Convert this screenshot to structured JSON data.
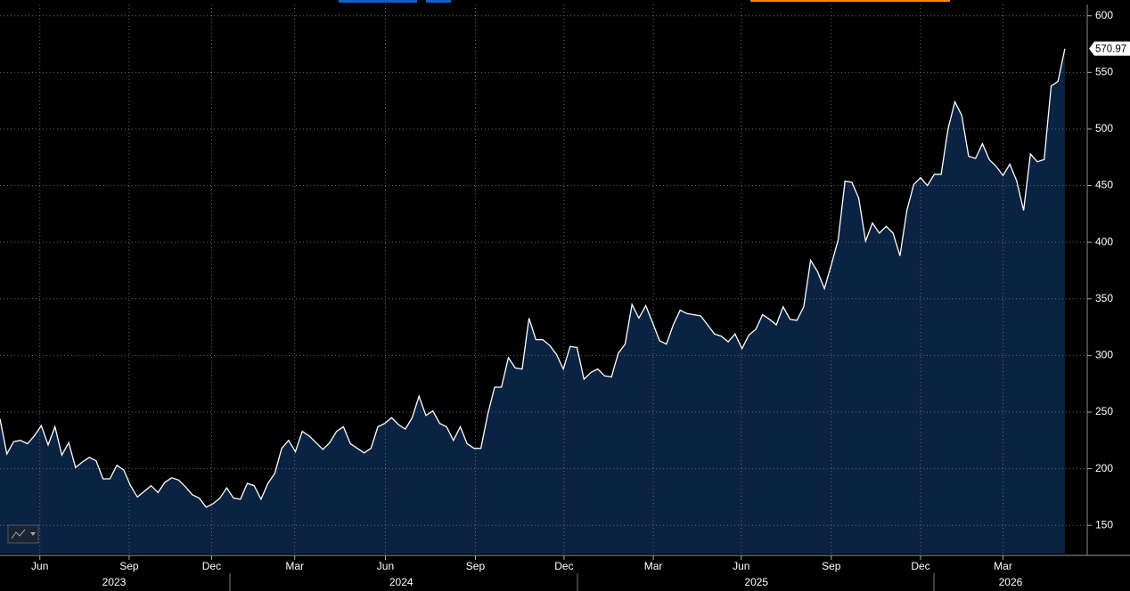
{
  "chart_data": {
    "type": "area",
    "values": [
      244,
      213,
      224,
      225,
      222,
      229,
      238,
      221,
      237,
      212,
      223,
      201,
      206,
      210,
      207,
      191,
      191,
      203,
      199,
      185,
      175,
      180,
      185,
      179,
      188,
      192,
      190,
      184,
      177,
      174,
      166,
      169,
      174,
      183,
      174,
      173,
      187,
      185,
      173,
      187,
      196,
      218,
      225,
      215,
      233,
      229,
      223,
      217,
      223,
      233,
      237,
      222,
      218,
      214,
      218,
      237,
      240,
      245,
      239,
      235,
      245,
      264,
      247,
      251,
      240,
      237,
      225,
      237,
      222,
      218,
      218,
      248,
      272,
      272,
      298,
      289,
      288,
      333,
      314,
      314,
      309,
      301,
      288,
      308,
      307,
      279,
      285,
      288,
      282,
      281,
      302,
      310,
      345,
      333,
      344,
      329,
      313,
      310,
      327,
      340,
      337,
      336,
      335,
      327,
      319,
      317,
      312,
      319,
      306,
      318,
      323,
      336,
      332,
      327,
      343,
      332,
      331,
      343,
      384,
      374,
      359,
      380,
      402,
      454,
      453,
      439,
      401,
      417,
      408,
      414,
      408,
      388,
      428,
      451,
      457,
      450,
      460,
      460,
      500,
      524,
      512,
      476,
      474,
      487,
      473,
      467,
      459,
      469,
      454,
      428,
      478,
      471,
      473,
      538,
      542,
      570.97
    ],
    "color": "#0a2342",
    "line_color": "#ffffff",
    "ylim": [
      125,
      610
    ],
    "yticks": [
      150,
      200,
      250,
      300,
      350,
      400,
      450,
      500,
      550,
      600
    ],
    "xlim": [
      0,
      158
    ],
    "xticks": [
      {
        "value": 5.8,
        "label": "Jun"
      },
      {
        "value": 18.8,
        "label": "Sep"
      },
      {
        "value": 30.8,
        "label": "Dec"
      },
      {
        "value": 42.9,
        "label": "Mar"
      },
      {
        "value": 56.1,
        "label": "Jun"
      },
      {
        "value": 69.2,
        "label": "Sep"
      },
      {
        "value": 82.1,
        "label": "Dec"
      },
      {
        "value": 95.1,
        "label": "Mar"
      },
      {
        "value": 107.9,
        "label": "Jun"
      },
      {
        "value": 121.0,
        "label": "Sep"
      },
      {
        "value": 134.0,
        "label": "Dec"
      },
      {
        "value": 146.0,
        "label": "Mar"
      }
    ],
    "year_ticks": [
      {
        "value": 16.6,
        "label": "2023"
      },
      {
        "value": 58.4,
        "label": "2024"
      },
      {
        "value": 110.1,
        "label": "2025"
      },
      {
        "value": 147.1,
        "label": "2026"
      }
    ],
    "grid": true
  }
}
